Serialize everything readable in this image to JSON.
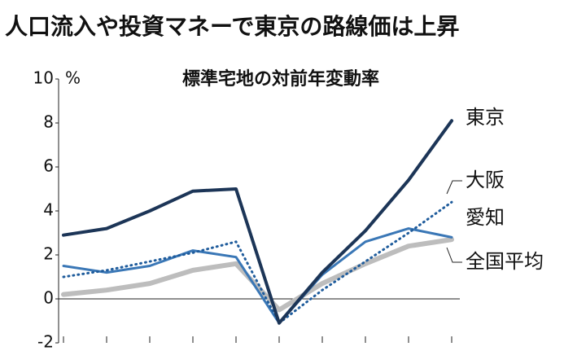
{
  "chart_data": {
    "type": "line",
    "title": "人口流入や投資マネーで東京の路線価は上昇",
    "subtitle": "標準宅地の対前年変動率",
    "y_label": "%",
    "categories": [
      null,
      null,
      null,
      null,
      null,
      null,
      null,
      null,
      null,
      null
    ],
    "series": [
      {
        "name": "東京",
        "color": "#1c3557",
        "style": "solid",
        "values": [
          2.9,
          3.2,
          4.0,
          4.9,
          5.0,
          -1.1,
          1.2,
          3.1,
          5.4,
          8.1
        ]
      },
      {
        "name": "大阪",
        "color": "#1f5c9c",
        "style": "dotted",
        "values": [
          1.0,
          1.3,
          1.7,
          2.1,
          2.6,
          -1.1,
          0.4,
          1.7,
          3.0,
          4.4
        ]
      },
      {
        "name": "愛知",
        "color": "#3a77b6",
        "style": "solid",
        "values": [
          1.5,
          1.2,
          1.5,
          2.2,
          1.9,
          -1.1,
          1.1,
          2.6,
          3.2,
          2.8
        ]
      },
      {
        "name": "全国平均",
        "color": "#bdbdbd",
        "style": "thick",
        "values": [
          0.2,
          0.4,
          0.7,
          1.3,
          1.6,
          -0.5,
          0.7,
          1.6,
          2.4,
          2.7
        ]
      }
    ],
    "ylim": [
      -2,
      10
    ],
    "yticks": [
      -2,
      0,
      2,
      4,
      6,
      8,
      10
    ]
  }
}
